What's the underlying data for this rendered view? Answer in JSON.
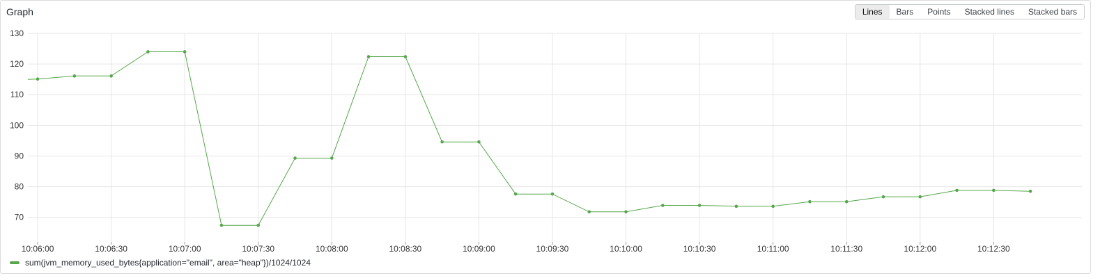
{
  "panel": {
    "title": "Graph",
    "modes": [
      "Lines",
      "Bars",
      "Points",
      "Stacked lines",
      "Stacked bars"
    ],
    "active_mode": "Lines"
  },
  "colors": {
    "series": "#56a64b",
    "grid": "#e6e6e6"
  },
  "chart_data": {
    "type": "line",
    "title": "",
    "xlabel": "",
    "ylabel": "",
    "ylim": [
      62,
      130
    ],
    "yticks": [
      70,
      80,
      90,
      100,
      110,
      120,
      130
    ],
    "xticks": [
      "10:06:00",
      "10:06:30",
      "10:07:00",
      "10:07:30",
      "10:08:00",
      "10:08:30",
      "10:09:00",
      "10:09:30",
      "10:10:00",
      "10:10:30",
      "10:11:00",
      "10:11:30",
      "10:12:00",
      "10:12:30"
    ],
    "xlim": [
      "10:05:56",
      "10:13:06"
    ],
    "grid": true,
    "legend_position": "bottom-left",
    "series": [
      {
        "name": "sum(jvm_memory_used_bytes{application=\"email\", area=\"heap\"})/1024/1024",
        "start_value": 115,
        "x": [
          "10:06:00",
          "10:06:15",
          "10:06:30",
          "10:06:45",
          "10:07:00",
          "10:07:15",
          "10:07:30",
          "10:07:45",
          "10:08:00",
          "10:08:15",
          "10:08:30",
          "10:08:45",
          "10:09:00",
          "10:09:15",
          "10:09:30",
          "10:09:45",
          "10:10:00",
          "10:10:15",
          "10:10:30",
          "10:10:45",
          "10:11:00",
          "10:11:15",
          "10:11:30",
          "10:11:45",
          "10:12:00",
          "10:12:15",
          "10:12:30",
          "10:12:45"
        ],
        "values": [
          115.1,
          116.1,
          116.1,
          124.0,
          124.0,
          67.4,
          67.4,
          89.3,
          89.3,
          122.4,
          122.4,
          94.6,
          94.6,
          77.6,
          77.6,
          71.8,
          71.8,
          73.9,
          73.9,
          73.6,
          73.6,
          75.1,
          75.1,
          76.7,
          76.7,
          78.8,
          78.8,
          78.5
        ]
      }
    ]
  }
}
